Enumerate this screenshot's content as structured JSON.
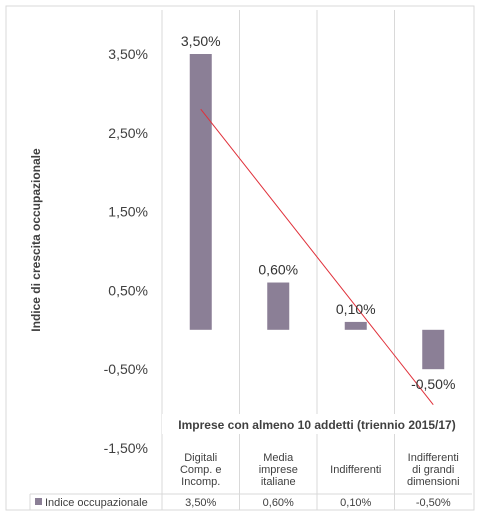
{
  "chart_data": {
    "type": "bar",
    "subtitle": "Imprese con almeno 10 addetti (triennio 2015/17)",
    "ylabel": "Indice di crescita occupazionale",
    "categories": [
      [
        "Digitali",
        "Comp. e",
        "Incomp."
      ],
      [
        "Media",
        "imprese",
        "italiane"
      ],
      [
        "Indifferenti"
      ],
      [
        "Indifferenti",
        "di grandi",
        "dimensioni"
      ]
    ],
    "series": [
      {
        "name": "Indice occupazionale",
        "values": [
          3.5,
          0.6,
          0.1,
          -0.5
        ],
        "color": "#8b7f96"
      }
    ],
    "data_labels": [
      "3,50%",
      "0,60%",
      "0,10%",
      "-0,50%"
    ],
    "table_values": [
      "3,50%",
      "0,60%",
      "0,10%",
      "-0,50%"
    ],
    "yticks": [
      "3,50%",
      "2,50%",
      "1,50%",
      "0,50%",
      "-0,50%",
      "-1,50%"
    ],
    "ytick_values": [
      3.5,
      2.5,
      1.5,
      0.5,
      -0.5,
      -1.5
    ],
    "ylim": [
      -1.5,
      3.5
    ],
    "trendline": {
      "type": "linear",
      "color": "#e0303a"
    },
    "data_table": true,
    "grid": "vertical"
  }
}
